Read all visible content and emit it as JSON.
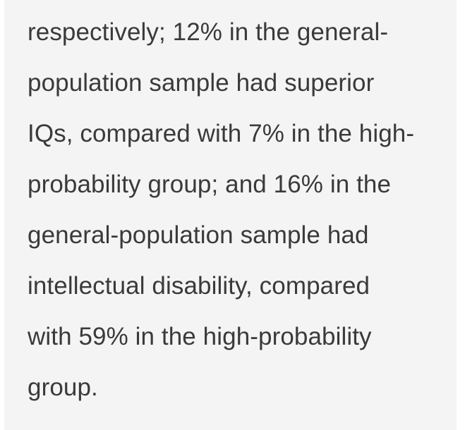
{
  "article": {
    "lines": [
      "respectively; 12% in the general-",
      "population sample had superior",
      "IQs, compared with 7% in the high-",
      "probability group; and 16% in the",
      "general-population sample had",
      "intellectual disability, compared",
      "with 59% in the high-probability",
      "group."
    ]
  }
}
